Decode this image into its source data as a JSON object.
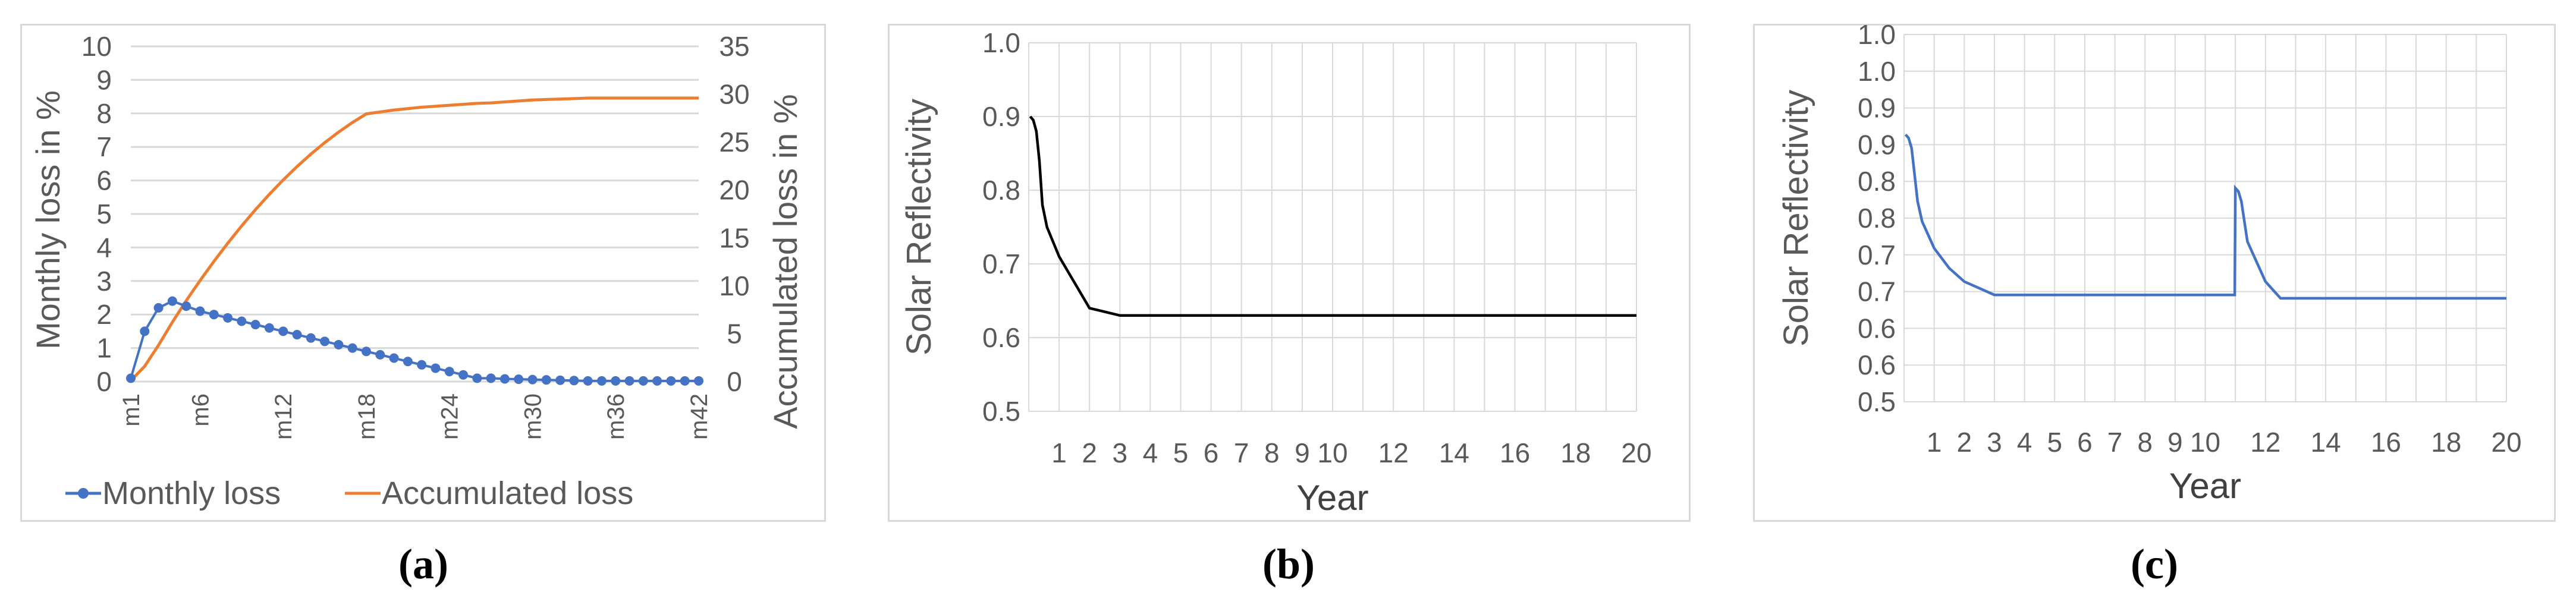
{
  "chart_data": [
    {
      "panel": "a",
      "type": "line",
      "x_ticks": [
        "m1",
        "m6",
        "m12",
        "m18",
        "m24",
        "m30",
        "m36",
        "m42"
      ],
      "n_points": 42,
      "ylabel": "Monthly  loss  in %",
      "y2label": "Accumulated loss in %",
      "ylim": [
        0,
        10
      ],
      "y2lim": [
        0,
        35
      ],
      "y_ticks": [
        0,
        1,
        2,
        3,
        4,
        5,
        6,
        7,
        8,
        9,
        10
      ],
      "y2_ticks": [
        0,
        5,
        10,
        15,
        20,
        25,
        30,
        35
      ],
      "series": [
        {
          "name": "Monthly loss",
          "axis": "left",
          "color": "#4472c4",
          "marker": "circle",
          "values": [
            0.1,
            1.5,
            2.2,
            2.4,
            2.25,
            2.1,
            2.0,
            1.9,
            1.8,
            1.7,
            1.6,
            1.5,
            1.4,
            1.3,
            1.2,
            1.1,
            1.0,
            0.9,
            0.8,
            0.7,
            0.6,
            0.5,
            0.4,
            0.3,
            0.2,
            0.1,
            0.1,
            0.08,
            0.07,
            0.06,
            0.05,
            0.04,
            0.03,
            0.02,
            0.02,
            0.02,
            0.02,
            0.02,
            0.02,
            0.02,
            0.02,
            0.02
          ]
        },
        {
          "name": "Accumulated  loss",
          "axis": "right",
          "color": "#ed7d31",
          "marker": "none",
          "values": [
            0.1,
            1.6,
            3.8,
            6.2,
            8.45,
            10.55,
            12.55,
            14.45,
            16.25,
            17.95,
            19.55,
            21.05,
            22.45,
            23.75,
            24.95,
            26.05,
            27.05,
            27.95,
            28.15,
            28.35,
            28.5,
            28.65,
            28.75,
            28.85,
            28.95,
            29.05,
            29.1,
            29.2,
            29.3,
            29.4,
            29.45,
            29.5,
            29.55,
            29.6,
            29.6,
            29.6,
            29.6,
            29.6,
            29.6,
            29.6,
            29.6,
            29.6
          ]
        }
      ],
      "legend": "bottom"
    },
    {
      "panel": "b",
      "type": "line",
      "xlabel": "Year",
      "ylabel": "Solar Reflectivity",
      "xlim": [
        0,
        20
      ],
      "ylim": [
        0.5,
        1.0
      ],
      "y_ticks": [
        "0.5",
        "0.6",
        "0.7",
        "0.8",
        "0.9",
        "1.0"
      ],
      "x_ticks": [
        "1",
        "2",
        "3",
        "4",
        "5",
        "6",
        "7",
        "8",
        "9",
        "10",
        "12",
        "14",
        "16",
        "18",
        "20"
      ],
      "grid": true,
      "series": [
        {
          "color": "#000000",
          "x": [
            0.05,
            0.15,
            0.25,
            0.35,
            0.45,
            0.6,
            0.8,
            1.0,
            1.5,
            2.0,
            2.5,
            3.0,
            4,
            6,
            8,
            10,
            12,
            14,
            16,
            18,
            20
          ],
          "y": [
            0.9,
            0.895,
            0.88,
            0.84,
            0.78,
            0.75,
            0.73,
            0.71,
            0.675,
            0.64,
            0.635,
            0.63,
            0.63,
            0.63,
            0.63,
            0.63,
            0.63,
            0.63,
            0.63,
            0.63,
            0.63
          ]
        }
      ]
    },
    {
      "panel": "c",
      "type": "line",
      "xlabel": "Year",
      "ylabel": "Solar Reflectivity",
      "xlim": [
        0,
        20
      ],
      "ylim": [
        0.5,
        1.05
      ],
      "y_ticks": [
        "0.5",
        "0.6",
        "0.6",
        "0.7",
        "0.7",
        "0.8",
        "0.8",
        "0.9",
        "0.9",
        "1.0",
        "1.0"
      ],
      "x_ticks": [
        "1",
        "2",
        "3",
        "4",
        "5",
        "6",
        "7",
        "8",
        "9",
        "10",
        "12",
        "14",
        "16",
        "18",
        "20"
      ],
      "grid": true,
      "series": [
        {
          "color": "#4472c4",
          "x": [
            0.05,
            0.15,
            0.25,
            0.35,
            0.45,
            0.6,
            0.8,
            1.0,
            1.5,
            2.0,
            2.5,
            3.0,
            4,
            6,
            8,
            10,
            10.98,
            11.0,
            11.1,
            11.2,
            11.3,
            11.4,
            11.6,
            11.8,
            12.0,
            12.5,
            13,
            14,
            16,
            18,
            20
          ],
          "y": [
            0.9,
            0.895,
            0.88,
            0.84,
            0.8,
            0.77,
            0.75,
            0.73,
            0.7,
            0.68,
            0.67,
            0.66,
            0.66,
            0.66,
            0.66,
            0.66,
            0.66,
            0.82,
            0.815,
            0.8,
            0.77,
            0.74,
            0.72,
            0.7,
            0.68,
            0.655,
            0.655,
            0.655,
            0.655,
            0.655,
            0.655
          ]
        }
      ]
    }
  ],
  "captions": {
    "a": "(a)",
    "b": "(b)",
    "c": "(c)"
  }
}
